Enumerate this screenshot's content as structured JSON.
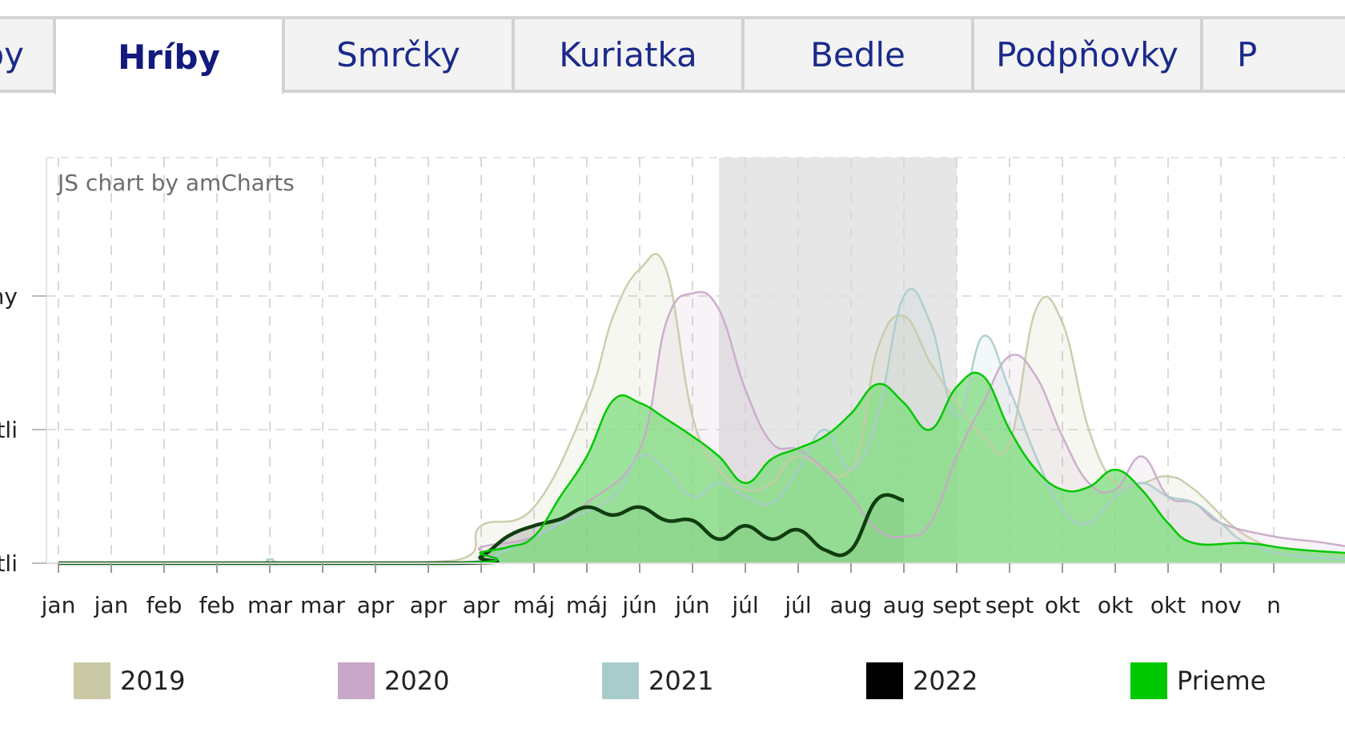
{
  "tabs": [
    {
      "label": "by",
      "active": false
    },
    {
      "label": "Hríby",
      "active": true
    },
    {
      "label": "Smrčky",
      "active": false
    },
    {
      "label": "Kuriatka",
      "active": false
    },
    {
      "label": "Bedle",
      "active": false
    },
    {
      "label": "Podpňovky",
      "active": false
    },
    {
      "label": "P",
      "active": false
    }
  ],
  "chart_credit": "JS chart by amCharts",
  "colors": {
    "2019": "#c9c9a6",
    "2020": "#c8a7c8",
    "2021": "#a8cccc",
    "2022": "#000000",
    "priemer": "#00c800",
    "area_fill": "#7ddc7d",
    "highlight": "#e6e6e6"
  },
  "chart_data": {
    "type": "line",
    "x_unit": "week of year",
    "x_range": [
      1,
      52
    ],
    "tick_labels": [
      "jan",
      "jan",
      "feb",
      "feb",
      "mar",
      "mar",
      "apr",
      "apr",
      "apr",
      "máj",
      "máj",
      "jún",
      "jún",
      "júl",
      "júl",
      "aug",
      "aug",
      "sept",
      "sept",
      "okt",
      "okt",
      "okt",
      "nov",
      "n"
    ],
    "y_axis_labels": [
      "ny",
      "tli",
      "tli"
    ],
    "y_levels": [
      3,
      2,
      1
    ],
    "ylim": [
      1,
      4
    ],
    "highlight_weeks": [
      26,
      35
    ],
    "legend_position": "bottom",
    "series": [
      {
        "name": "2019",
        "key": "2019",
        "points": [
          [
            1,
            1
          ],
          [
            10,
            1
          ],
          [
            16,
            1.02
          ],
          [
            17,
            1.28
          ],
          [
            19,
            1.42
          ],
          [
            21,
            2.2
          ],
          [
            22,
            2.85
          ],
          [
            23,
            3.2
          ],
          [
            24,
            3.2
          ],
          [
            25,
            2.1
          ],
          [
            26,
            1.7
          ],
          [
            27,
            1.55
          ],
          [
            28,
            1.6
          ],
          [
            29,
            1.8
          ],
          [
            31,
            1.7
          ],
          [
            32,
            2.6
          ],
          [
            33,
            2.85
          ],
          [
            34,
            2.5
          ],
          [
            35,
            2.2
          ],
          [
            36,
            1.95
          ],
          [
            37,
            1.9
          ],
          [
            38,
            2.9
          ],
          [
            39,
            2.8
          ],
          [
            40,
            2.0
          ],
          [
            41,
            1.6
          ],
          [
            42,
            1.6
          ],
          [
            43,
            1.65
          ],
          [
            44,
            1.55
          ],
          [
            46,
            1.2
          ],
          [
            48,
            1.1
          ],
          [
            52,
            1.05
          ]
        ]
      },
      {
        "name": "2020",
        "key": "2020",
        "points": [
          [
            1,
            1
          ],
          [
            16,
            1
          ],
          [
            17,
            1.12
          ],
          [
            19,
            1.2
          ],
          [
            21,
            1.45
          ],
          [
            23,
            1.85
          ],
          [
            24,
            2.8
          ],
          [
            25,
            3.02
          ],
          [
            26,
            2.9
          ],
          [
            27,
            2.3
          ],
          [
            28,
            1.9
          ],
          [
            29,
            1.85
          ],
          [
            30,
            1.7
          ],
          [
            31,
            1.5
          ],
          [
            32,
            1.25
          ],
          [
            33,
            1.2
          ],
          [
            34,
            1.3
          ],
          [
            35,
            1.8
          ],
          [
            36,
            2.2
          ],
          [
            37,
            2.55
          ],
          [
            38,
            2.4
          ],
          [
            39,
            1.95
          ],
          [
            40,
            1.6
          ],
          [
            41,
            1.55
          ],
          [
            42,
            1.8
          ],
          [
            43,
            1.5
          ],
          [
            44,
            1.45
          ],
          [
            45,
            1.3
          ],
          [
            47,
            1.2
          ],
          [
            49,
            1.15
          ],
          [
            52,
            1.05
          ]
        ]
      },
      {
        "name": "2021",
        "key": "2021",
        "points": [
          [
            1,
            1
          ],
          [
            8,
            1
          ],
          [
            9,
            1.03
          ],
          [
            10,
            1
          ],
          [
            16,
            1
          ],
          [
            18,
            1.1
          ],
          [
            20,
            1.3
          ],
          [
            22,
            1.5
          ],
          [
            23,
            1.8
          ],
          [
            24,
            1.7
          ],
          [
            25,
            1.5
          ],
          [
            26,
            1.6
          ],
          [
            27,
            1.5
          ],
          [
            28,
            1.45
          ],
          [
            29,
            1.7
          ],
          [
            30,
            2.0
          ],
          [
            31,
            1.7
          ],
          [
            32,
            2.1
          ],
          [
            33,
            3.0
          ],
          [
            34,
            2.8
          ],
          [
            35,
            2.1
          ],
          [
            36,
            2.7
          ],
          [
            37,
            2.3
          ],
          [
            38,
            1.8
          ],
          [
            39,
            1.4
          ],
          [
            40,
            1.3
          ],
          [
            41,
            1.5
          ],
          [
            42,
            1.6
          ],
          [
            43,
            1.5
          ],
          [
            44,
            1.45
          ],
          [
            45,
            1.3
          ],
          [
            46,
            1.15
          ],
          [
            48,
            1.05
          ],
          [
            52,
            1.02
          ]
        ]
      },
      {
        "name": "2022",
        "key": "2022",
        "points": [
          [
            1,
            1
          ],
          [
            16,
            1
          ],
          [
            17,
            1.05
          ],
          [
            18,
            1.2
          ],
          [
            19,
            1.28
          ],
          [
            20,
            1.33
          ],
          [
            21,
            1.42
          ],
          [
            22,
            1.36
          ],
          [
            23,
            1.42
          ],
          [
            24,
            1.32
          ],
          [
            25,
            1.32
          ],
          [
            26,
            1.18
          ],
          [
            27,
            1.28
          ],
          [
            28,
            1.18
          ],
          [
            29,
            1.25
          ],
          [
            30,
            1.1
          ],
          [
            31,
            1.1
          ],
          [
            32,
            1.48
          ],
          [
            33,
            1.47
          ]
        ]
      },
      {
        "name": "Prieme",
        "key": "priemer",
        "points": [
          [
            1,
            1
          ],
          [
            16,
            1
          ],
          [
            17,
            1.08
          ],
          [
            18,
            1.12
          ],
          [
            19,
            1.2
          ],
          [
            20,
            1.5
          ],
          [
            21,
            1.8
          ],
          [
            22,
            2.22
          ],
          [
            23,
            2.2
          ],
          [
            24,
            2.08
          ],
          [
            25,
            1.95
          ],
          [
            26,
            1.8
          ],
          [
            27,
            1.6
          ],
          [
            28,
            1.78
          ],
          [
            29,
            1.86
          ],
          [
            30,
            1.95
          ],
          [
            31,
            2.12
          ],
          [
            32,
            2.34
          ],
          [
            33,
            2.2
          ],
          [
            34,
            2.0
          ],
          [
            35,
            2.32
          ],
          [
            36,
            2.4
          ],
          [
            37,
            2.0
          ],
          [
            38,
            1.7
          ],
          [
            39,
            1.55
          ],
          [
            40,
            1.57
          ],
          [
            41,
            1.7
          ],
          [
            42,
            1.55
          ],
          [
            43,
            1.3
          ],
          [
            44,
            1.15
          ],
          [
            46,
            1.15
          ],
          [
            48,
            1.1
          ],
          [
            52,
            1.05
          ]
        ]
      }
    ]
  },
  "legend": [
    {
      "label": "2019",
      "key": "2019"
    },
    {
      "label": "2020",
      "key": "2020"
    },
    {
      "label": "2021",
      "key": "2021"
    },
    {
      "label": "2022",
      "key": "2022"
    },
    {
      "label": "Prieme",
      "key": "priemer"
    }
  ]
}
